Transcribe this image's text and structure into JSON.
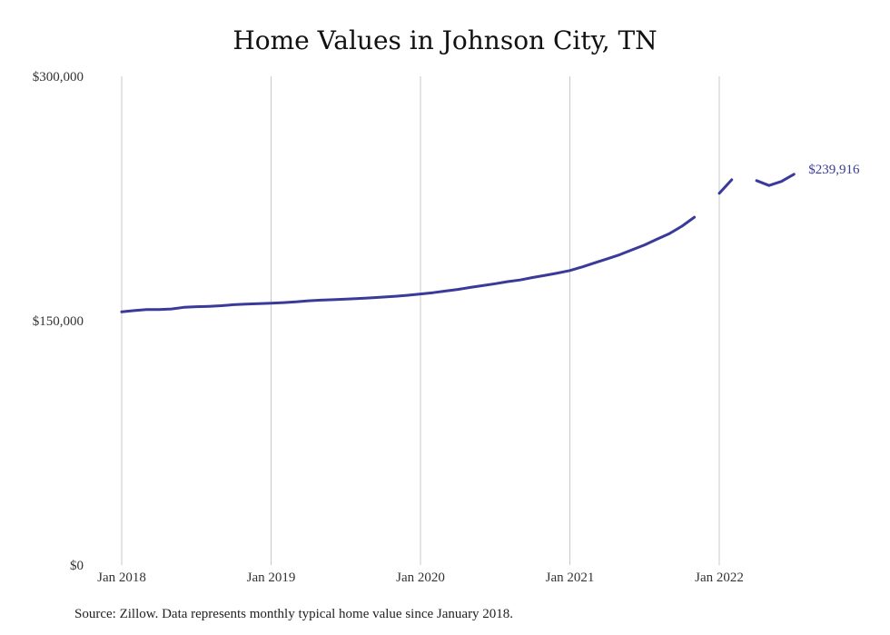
{
  "source_note": "Source: Zillow. Data represents monthly typical home value since January 2018.",
  "chart_data": {
    "type": "line",
    "title": "Home Values in Johnson City, TN",
    "xlabel": "",
    "ylabel": "",
    "ylim": [
      0,
      300000
    ],
    "y_ticks": [
      {
        "value": 0,
        "label": "$0"
      },
      {
        "value": 150000,
        "label": "$150,000"
      },
      {
        "value": 300000,
        "label": "$300,000"
      }
    ],
    "x_ticks": [
      {
        "value": "2018-01",
        "label": "Jan 2018"
      },
      {
        "value": "2019-01",
        "label": "Jan 2019"
      },
      {
        "value": "2020-01",
        "label": "Jan 2020"
      },
      {
        "value": "2021-01",
        "label": "Jan 2021"
      },
      {
        "value": "2022-01",
        "label": "Jan 2022"
      }
    ],
    "grid": {
      "vertical": true,
      "horizontal": false
    },
    "series_color": "#3a3a9a",
    "end_label": "$239,916",
    "x": [
      "2018-01",
      "2018-02",
      "2018-03",
      "2018-04",
      "2018-05",
      "2018-06",
      "2018-07",
      "2018-08",
      "2018-09",
      "2018-10",
      "2018-11",
      "2018-12",
      "2019-01",
      "2019-02",
      "2019-03",
      "2019-04",
      "2019-05",
      "2019-06",
      "2019-07",
      "2019-08",
      "2019-09",
      "2019-10",
      "2019-11",
      "2019-12",
      "2020-01",
      "2020-02",
      "2020-03",
      "2020-04",
      "2020-05",
      "2020-06",
      "2020-07",
      "2020-08",
      "2020-09",
      "2020-10",
      "2020-11",
      "2020-12",
      "2021-01",
      "2021-02",
      "2021-03",
      "2021-04",
      "2021-05",
      "2021-06",
      "2021-07",
      "2021-08",
      "2021-09",
      "2021-10",
      "2021-11",
      "2021-12",
      "2022-01",
      "2022-02",
      "2022-03",
      "2022-04",
      "2022-05",
      "2022-06",
      "2022-07"
    ],
    "series": [
      {
        "values": [
          155400,
          156200,
          156800,
          156800,
          157200,
          158200,
          158600,
          158800,
          159200,
          159800,
          160200,
          160500,
          160700,
          161100,
          161600,
          162200,
          162600,
          162900,
          163200,
          163600,
          164000,
          164500,
          165000,
          165600,
          166400,
          167200,
          168200,
          169200,
          170400,
          171500,
          172700,
          174000,
          175000,
          176500,
          177800,
          179200,
          180800,
          183000,
          185500,
          188000,
          190500,
          193500,
          196500,
          200000,
          203500,
          208000,
          213500,
          null,
          228200,
          236500,
          null,
          236000,
          233000,
          235500,
          239916
        ]
      }
    ]
  }
}
